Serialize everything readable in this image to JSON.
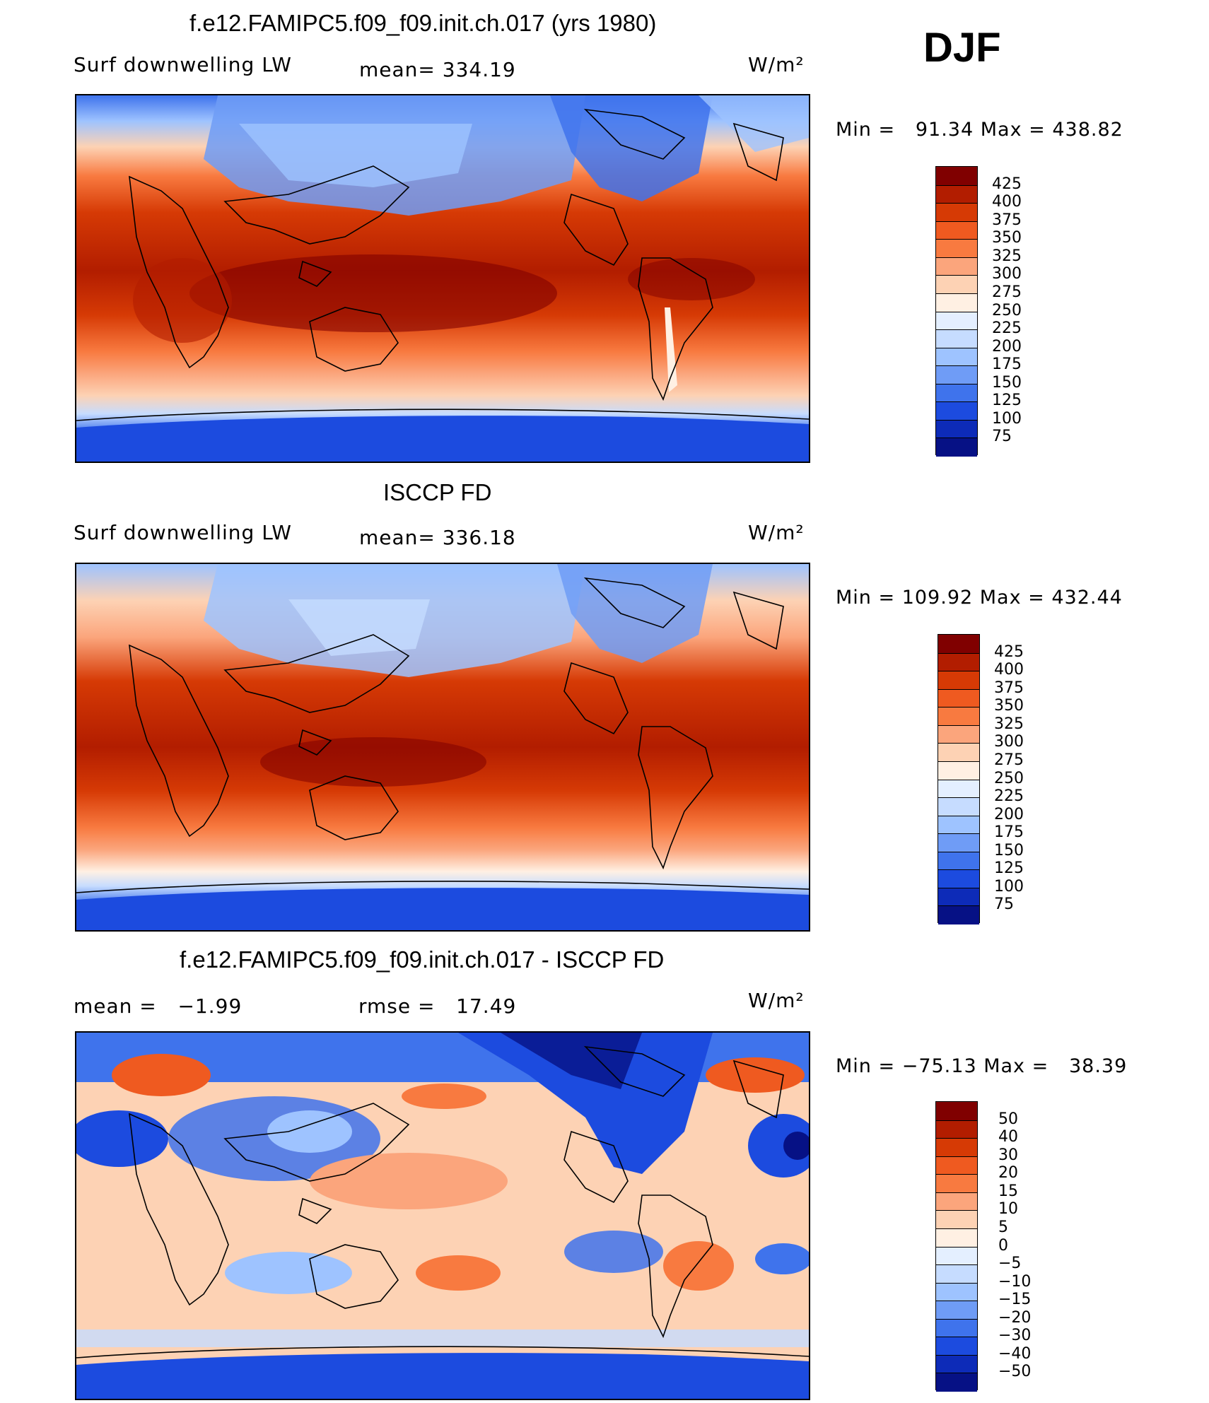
{
  "season": "DJF",
  "panels": [
    {
      "id": "model",
      "title": "f.e12.FAMIPC5.f09_f09.init.ch.017 (yrs 1980)",
      "left_label": "Surf downwelling LW",
      "mid_label": "mean= 334.19",
      "units": "W/m²",
      "minmax": "Min =   91.34 Max = 438.82",
      "levels": [
        "425",
        "400",
        "375",
        "350",
        "325",
        "300",
        "275",
        "250",
        "225",
        "200",
        "175",
        "150",
        "125",
        "100",
        "75"
      ],
      "colors": [
        "#800000",
        "#b21d00",
        "#d63a05",
        "#ef5a20",
        "#f87a40",
        "#fba57c",
        "#fdd2b4",
        "#fff0e3",
        "#e4efff",
        "#c6dcff",
        "#9ec3ff",
        "#6f9cf6",
        "#3f73ec",
        "#1c4bdf",
        "#0d2bb8",
        "#061185"
      ]
    },
    {
      "id": "obs",
      "title": "ISCCP FD",
      "left_label": "Surf downwelling LW",
      "mid_label": "mean= 336.18",
      "units": "W/m²",
      "minmax": "Min = 109.92 Max = 432.44",
      "levels": [
        "425",
        "400",
        "375",
        "350",
        "325",
        "300",
        "275",
        "250",
        "225",
        "200",
        "175",
        "150",
        "125",
        "100",
        "75"
      ],
      "colors": [
        "#800000",
        "#b21d00",
        "#d63a05",
        "#ef5a20",
        "#f87a40",
        "#fba57c",
        "#fdd2b4",
        "#fff0e3",
        "#e4efff",
        "#c6dcff",
        "#9ec3ff",
        "#6f9cf6",
        "#3f73ec",
        "#1c4bdf",
        "#0d2bb8",
        "#061185"
      ]
    },
    {
      "id": "diff",
      "title": "f.e12.FAMIPC5.f09_f09.init.ch.017 - ISCCP FD",
      "left_label": "mean =   −1.99",
      "mid_label": "rmse =   17.49",
      "units": "W/m²",
      "minmax": "Min = −75.13 Max =   38.39",
      "levels": [
        "50",
        "40",
        "30",
        "20",
        "15",
        "10",
        "5",
        "0",
        "−5",
        "−10",
        "−15",
        "−20",
        "−30",
        "−40",
        "−50"
      ],
      "colors": [
        "#800000",
        "#b21d00",
        "#d63a05",
        "#ef5a20",
        "#f87a40",
        "#fba57c",
        "#fdd2b4",
        "#fff0e3",
        "#e4efff",
        "#c6dcff",
        "#9ec3ff",
        "#6f9cf6",
        "#3f73ec",
        "#1c4bdf",
        "#0d2bb8",
        "#061185"
      ]
    }
  ]
}
